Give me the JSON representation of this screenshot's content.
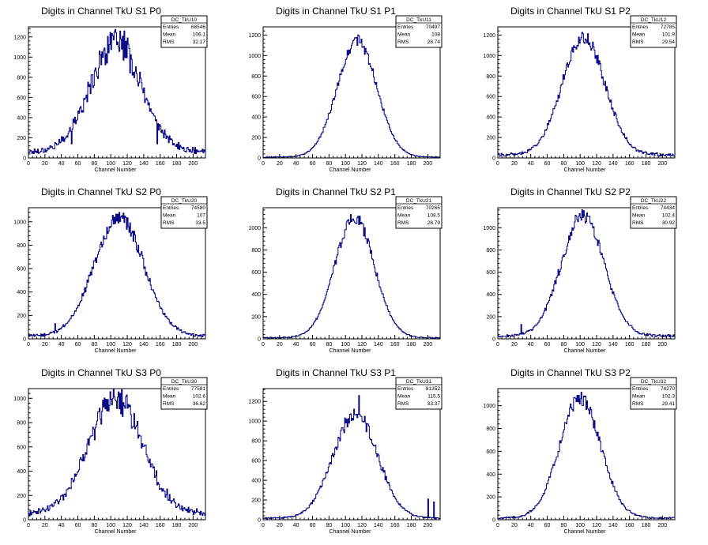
{
  "style": {
    "line_color": "#000080",
    "frame_color": "#000000",
    "background": "#ffffff"
  },
  "chart_data": [
    {
      "type": "histogram",
      "title": "Digits in Channel TkU S1 P0",
      "xlabel": "Channel Number",
      "ylabel": "",
      "xlim": [
        0,
        215
      ],
      "ylim": [
        0,
        1300
      ],
      "xticks": [
        0,
        20,
        40,
        60,
        80,
        100,
        120,
        140,
        160,
        180,
        200
      ],
      "yticks": [
        0,
        200,
        400,
        600,
        800,
        1000,
        1200
      ],
      "stats": {
        "name": "DC_TkU10",
        "entries": "68546",
        "mean": "106.1",
        "rms": "32.17"
      },
      "profile": {
        "mu": 106,
        "sigma": 31,
        "peak": 1080,
        "base": 60,
        "noise": 0.12
      },
      "spikes": [
        [
          38,
          150
        ],
        [
          52,
          140
        ],
        [
          108,
          1150
        ],
        [
          112,
          1180
        ],
        [
          116,
          1260
        ],
        [
          120,
          1190
        ],
        [
          156,
          140
        ]
      ]
    },
    {
      "type": "histogram",
      "title": "Digits in Channel TkU S1 P1",
      "xlabel": "Channel Number",
      "ylabel": "",
      "xlim": [
        0,
        215
      ],
      "ylim": [
        0,
        1280
      ],
      "xticks": [
        0,
        20,
        40,
        60,
        80,
        100,
        120,
        140,
        160,
        180,
        200
      ],
      "yticks": [
        0,
        200,
        400,
        600,
        800,
        1000,
        1200
      ],
      "stats": {
        "name": "DC_TkU11",
        "entries": "70497",
        "mean": "108",
        "rms": "28.74"
      },
      "profile": {
        "mu": 114,
        "sigma": 24,
        "peak": 1140,
        "base": 8,
        "noise": 0.05
      },
      "spikes": []
    },
    {
      "type": "histogram",
      "title": "Digits in Channel TkU S1 P2",
      "xlabel": "Channel Number",
      "ylabel": "",
      "xlim": [
        0,
        215
      ],
      "ylim": [
        0,
        1280
      ],
      "xticks": [
        0,
        20,
        40,
        60,
        80,
        100,
        120,
        140,
        160,
        180,
        200
      ],
      "yticks": [
        0,
        200,
        400,
        600,
        800,
        1000,
        1200
      ],
      "stats": {
        "name": "DC_TkU12",
        "entries": "72785",
        "mean": "101.9",
        "rms": "29.54"
      },
      "profile": {
        "mu": 104,
        "sigma": 26,
        "peak": 1150,
        "base": 30,
        "noise": 0.06
      },
      "spikes": []
    },
    {
      "type": "histogram",
      "title": "Digits in Channel TkU S2 P0",
      "xlabel": "Channel Number",
      "ylabel": "",
      "xlim": [
        0,
        215
      ],
      "ylim": [
        0,
        1120
      ],
      "xticks": [
        0,
        20,
        40,
        60,
        80,
        100,
        120,
        140,
        160,
        180,
        200
      ],
      "yticks": [
        0,
        200,
        400,
        600,
        800,
        1000
      ],
      "stats": {
        "name": "DC_TkU20",
        "entries": "74580",
        "mean": "107",
        "rms": "33.5"
      },
      "profile": {
        "mu": 110,
        "sigma": 30,
        "peak": 1010,
        "base": 25,
        "noise": 0.07
      },
      "spikes": [
        [
          32,
          130
        ]
      ]
    },
    {
      "type": "histogram",
      "title": "Digits in Channel TkU S2 P1",
      "xlabel": "Channel Number",
      "ylabel": "",
      "xlim": [
        0,
        215
      ],
      "ylim": [
        0,
        1180
      ],
      "xticks": [
        0,
        20,
        40,
        60,
        80,
        100,
        120,
        140,
        160,
        180,
        200
      ],
      "yticks": [
        0,
        200,
        400,
        600,
        800,
        1000
      ],
      "stats": {
        "name": "DC_TkU21",
        "entries": "70265",
        "mean": "108.5",
        "rms": "28.79"
      },
      "profile": {
        "mu": 111,
        "sigma": 24,
        "peak": 1080,
        "base": 10,
        "noise": 0.05
      },
      "spikes": []
    },
    {
      "type": "histogram",
      "title": "Digits in Channel TkU S2 P2",
      "xlabel": "Channel Number",
      "ylabel": "",
      "xlim": [
        0,
        215
      ],
      "ylim": [
        0,
        1180
      ],
      "xticks": [
        0,
        20,
        40,
        60,
        80,
        100,
        120,
        140,
        160,
        180,
        200
      ],
      "yticks": [
        0,
        200,
        400,
        600,
        800,
        1000
      ],
      "stats": {
        "name": "DC_TkU22",
        "entries": "74434",
        "mean": "102.4",
        "rms": "30.92"
      },
      "profile": {
        "mu": 103,
        "sigma": 26,
        "peak": 1080,
        "base": 25,
        "noise": 0.06
      },
      "spikes": [
        [
          28,
          130
        ]
      ]
    },
    {
      "type": "histogram",
      "title": "Digits in Channel TkU S3 P0",
      "xlabel": "Channel Number",
      "ylabel": "",
      "xlim": [
        0,
        215
      ],
      "ylim": [
        0,
        1080
      ],
      "xticks": [
        0,
        20,
        40,
        60,
        80,
        100,
        120,
        140,
        160,
        180,
        200
      ],
      "yticks": [
        0,
        200,
        400,
        600,
        800,
        1000
      ],
      "stats": {
        "name": "DC_TkU30",
        "entries": "77581",
        "mean": "102.6",
        "rms": "36.62"
      },
      "profile": {
        "mu": 106,
        "sigma": 33,
        "peak": 940,
        "base": 50,
        "noise": 0.12
      },
      "spikes": [
        [
          102,
          1000
        ],
        [
          150,
          460
        ]
      ]
    },
    {
      "type": "histogram",
      "title": "Digits in Channel TkU S3 P1",
      "xlabel": "Channel Number",
      "ylabel": "",
      "xlim": [
        0,
        215
      ],
      "ylim": [
        0,
        1330
      ],
      "xticks": [
        0,
        20,
        40,
        60,
        80,
        100,
        120,
        140,
        160,
        180,
        200
      ],
      "yticks": [
        0,
        200,
        400,
        600,
        800,
        1000,
        1200
      ],
      "stats": {
        "name": "DC_TkU31",
        "entries": "81352",
        "mean": "115.5",
        "rms": "33.37"
      },
      "profile": {
        "mu": 112,
        "sigma": 27,
        "peak": 1060,
        "base": 15,
        "noise": 0.07
      },
      "spikes": [
        [
          116,
          1260
        ],
        [
          200,
          210
        ],
        [
          207,
          180
        ]
      ]
    },
    {
      "type": "histogram",
      "title": "Digits in Channel TkU S3 P2",
      "xlabel": "Channel Number",
      "ylabel": "",
      "xlim": [
        0,
        215
      ],
      "ylim": [
        0,
        1150
      ],
      "xticks": [
        0,
        20,
        40,
        60,
        80,
        100,
        120,
        140,
        160,
        180,
        200
      ],
      "yticks": [
        0,
        200,
        400,
        600,
        800,
        1000
      ],
      "stats": {
        "name": "DC_TkU32",
        "entries": "74270",
        "mean": "102.3",
        "rms": "29.41"
      },
      "profile": {
        "mu": 100,
        "sigma": 25,
        "peak": 1050,
        "base": 15,
        "noise": 0.06
      },
      "spikes": [
        [
          57,
          260
        ]
      ]
    }
  ]
}
